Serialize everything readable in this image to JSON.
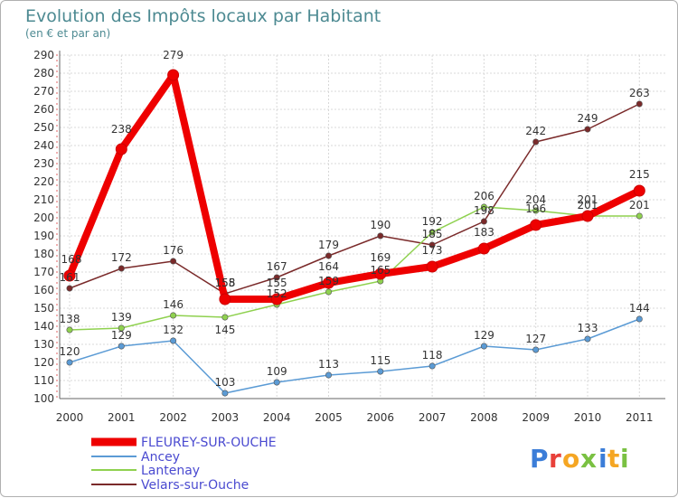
{
  "chart_data": {
    "type": "line",
    "title": "Evolution des Impôts locaux par Habitant",
    "subtitle": "(en € et par an)",
    "xlabel": "",
    "ylabel": "",
    "categories": [
      "2000",
      "2001",
      "2002",
      "2003",
      "2004",
      "2005",
      "2006",
      "2007",
      "2008",
      "2009",
      "2010",
      "2011"
    ],
    "ylim": [
      100,
      290
    ],
    "yticks": [
      100,
      110,
      120,
      130,
      140,
      150,
      160,
      170,
      180,
      190,
      200,
      210,
      220,
      230,
      240,
      250,
      260,
      270,
      280,
      290
    ],
    "grid": true,
    "legend_position": "bottom-left",
    "series": [
      {
        "name": "FLEUREY-SUR-OUCHE",
        "color": "#ee0000",
        "values": [
          168,
          238,
          279,
          155,
          155,
          164,
          169,
          173,
          183,
          196,
          201,
          215
        ],
        "labels": [
          "168",
          "238",
          "279",
          "155",
          "155",
          "164",
          "169",
          "173",
          "183",
          "196",
          "201",
          "215"
        ]
      },
      {
        "name": "Ancey",
        "color": "#5b9bd5",
        "values": [
          120,
          129,
          132,
          103,
          109,
          113,
          115,
          118,
          129,
          127,
          133,
          144
        ],
        "labels": [
          "120",
          "129",
          "132",
          "103",
          "109",
          "113",
          "115",
          "118",
          "129",
          "127",
          "133",
          "144"
        ]
      },
      {
        "name": "Lantenay",
        "color": "#8fd14f",
        "values": [
          138,
          139,
          146,
          145,
          152,
          159,
          165,
          192,
          206,
          204,
          201,
          201
        ],
        "labels": [
          "138",
          "139",
          "146",
          "145",
          "152",
          "159",
          "165",
          "192",
          "206",
          "204",
          "201",
          "201"
        ]
      },
      {
        "name": "Velars-sur-Ouche",
        "color": "#7a2a2a",
        "values": [
          161,
          172,
          176,
          158,
          167,
          179,
          190,
          185,
          198,
          242,
          249,
          263
        ],
        "labels": [
          "161",
          "172",
          "176",
          "158",
          "167",
          "179",
          "190",
          "185",
          "198",
          "242",
          "249",
          "263"
        ]
      }
    ]
  },
  "brand": {
    "letters": [
      "P",
      "r",
      "o",
      "x",
      "i",
      "t",
      "i"
    ],
    "colors": [
      "#3b7dd8",
      "#e8413a",
      "#f5a623",
      "#7ac142",
      "#3b7dd8",
      "#f5a623",
      "#7ac142"
    ]
  }
}
